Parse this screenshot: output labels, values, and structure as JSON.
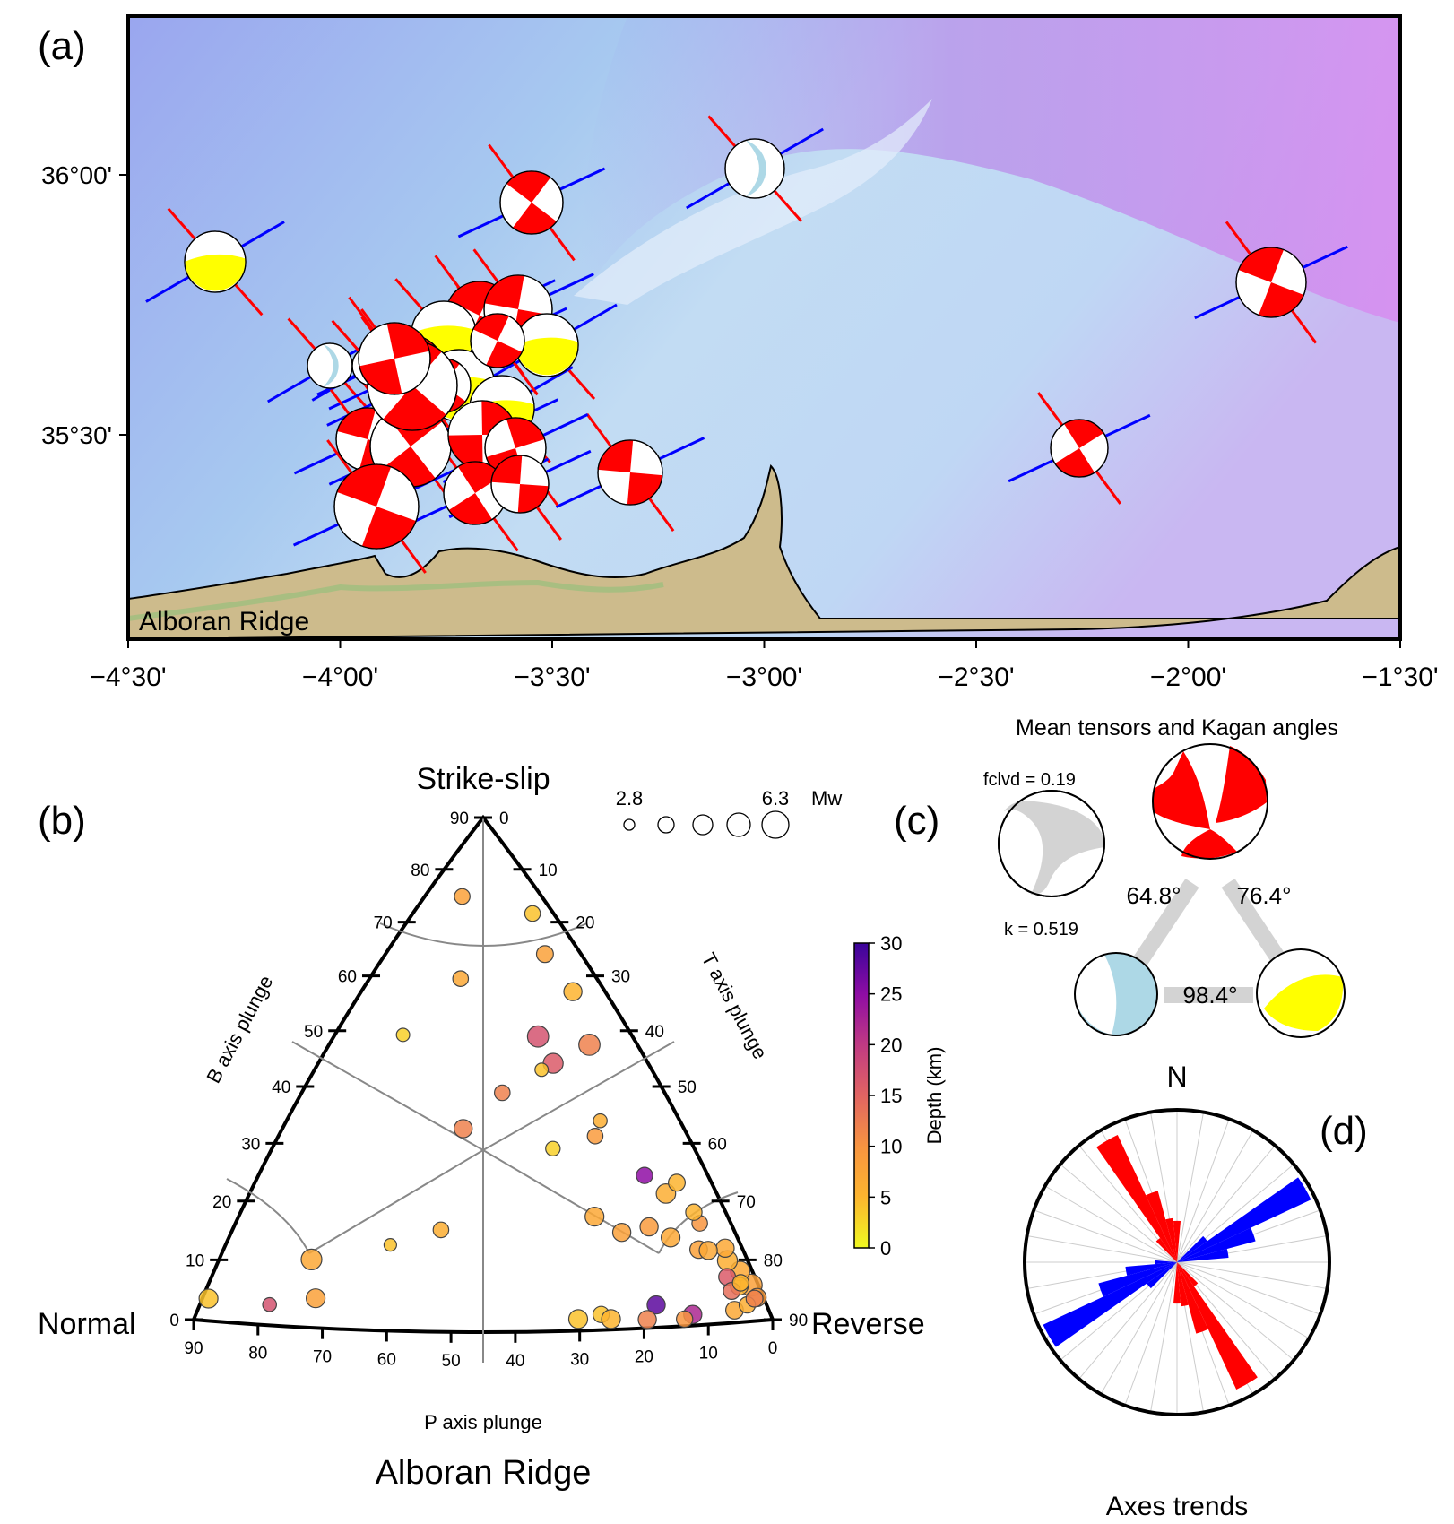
{
  "panels": {
    "a": {
      "label": "(a)",
      "map_label": "Alboran Ridge",
      "lat_ticks": [
        "36°00'",
        "35°30'"
      ],
      "lon_ticks": [
        "−4°30'",
        "−4°00'",
        "−3°30'",
        "−3°00'",
        "−2°30'",
        "−2°00'",
        "−1°30'"
      ]
    },
    "b": {
      "label": "(b)",
      "title": "Alboran Ridge",
      "corner_top": "Strike-slip",
      "corner_left": "Normal",
      "corner_right": "Reverse",
      "axis_left": "B axis plunge",
      "axis_right": "T axis plunge",
      "axis_bottom": "P axis plunge",
      "left_ticks": [
        "90",
        "80",
        "70",
        "60",
        "50",
        "40",
        "30",
        "20",
        "10",
        "0"
      ],
      "right_ticks": [
        "0",
        "10",
        "20",
        "30",
        "40",
        "50",
        "60",
        "70",
        "80",
        "90"
      ],
      "bottom_ticks": [
        "90",
        "80",
        "70",
        "60",
        "50",
        "40",
        "30",
        "20",
        "10",
        "0"
      ],
      "size_legend": {
        "min": "2.8",
        "max": "6.3",
        "unit": "Mw"
      },
      "colorbar": {
        "label": "Depth (km)",
        "ticks": [
          "30",
          "25",
          "20",
          "15",
          "10",
          "5",
          "0"
        ]
      }
    },
    "c": {
      "label": "(c)",
      "title": "Mean tensors and Kagan angles",
      "fclvd": "fclvd = 0.19",
      "k": "k = 0.519",
      "angles": [
        "64.8°",
        "76.4°",
        "98.4°"
      ]
    },
    "d": {
      "label": "(d)",
      "north": "N",
      "title": "Axes trends"
    }
  },
  "colors": {
    "strike_slip": "#ff0000",
    "normal": "#add8e6",
    "reverse": "#ffff00",
    "p_axis": "#0000ff",
    "t_axis": "#ff0000",
    "mean_tensor": "#d3d3d3"
  },
  "chart_data": [
    {
      "type": "scatter",
      "title": "Alboran Ridge",
      "description_axes": [
        "B axis plunge",
        "T axis plunge",
        "P axis plunge"
      ],
      "points": [
        {
          "t": 72,
          "p": 3,
          "b": 15,
          "mw": 4.6,
          "depth": 8
        },
        {
          "t": 70,
          "p": 5,
          "b": 18,
          "mw": 4.2,
          "depth": 7
        },
        {
          "t": 75,
          "p": 4,
          "b": 12,
          "mw": 4.0,
          "depth": 9
        },
        {
          "t": 68,
          "p": 8,
          "b": 20,
          "mw": 4.3,
          "depth": 6
        },
        {
          "t": 73,
          "p": 9,
          "b": 15,
          "mw": 3.9,
          "depth": 5
        },
        {
          "t": 66,
          "p": 6,
          "b": 22,
          "mw": 4.0,
          "depth": 7
        },
        {
          "t": 70,
          "p": 11,
          "b": 17,
          "mw": 3.8,
          "depth": 16
        },
        {
          "t": 62,
          "p": 10,
          "b": 26,
          "mw": 3.6,
          "depth": 10
        },
        {
          "t": 64,
          "p": 14,
          "b": 22,
          "mw": 3.9,
          "depth": 8
        },
        {
          "t": 60,
          "p": 18,
          "b": 24,
          "mw": 4.1,
          "depth": 7
        },
        {
          "t": 56,
          "p": 14,
          "b": 30,
          "mw": 4.2,
          "depth": 6
        },
        {
          "t": 58,
          "p": 10,
          "b": 32,
          "mw": 3.8,
          "depth": 5
        },
        {
          "t": 55,
          "p": 20,
          "b": 25,
          "mw": 4.0,
          "depth": 9
        },
        {
          "t": 52,
          "p": 16,
          "b": 32,
          "mw": 3.7,
          "depth": 25
        },
        {
          "t": 52,
          "p": 24,
          "b": 24,
          "mw": 4.0,
          "depth": 8
        },
        {
          "t": 48,
          "p": 26,
          "b": 26,
          "mw": 4.1,
          "depth": 7
        },
        {
          "t": 44,
          "p": 20,
          "b": 36,
          "mw": 3.6,
          "depth": 9
        },
        {
          "t": 40,
          "p": 26,
          "b": 34,
          "mw": 3.4,
          "depth": 3
        },
        {
          "t": 26,
          "p": 62,
          "b": 12,
          "mw": 4.1,
          "depth": 8
        },
        {
          "t": 22,
          "p": 58,
          "b": 20,
          "mw": 4.4,
          "depth": 7
        },
        {
          "t": 20,
          "p": 68,
          "b": 10,
          "mw": 3.3,
          "depth": 17
        },
        {
          "t": 36,
          "p": 20,
          "b": 44,
          "mw": 4.3,
          "depth": 16
        },
        {
          "t": 32,
          "p": 28,
          "b": 40,
          "mw": 3.6,
          "depth": 12
        },
        {
          "t": 30,
          "p": 34,
          "b": 36,
          "mw": 4.0,
          "depth": 12
        },
        {
          "t": 34,
          "p": 42,
          "b": 24,
          "mw": 3.6,
          "depth": 6
        },
        {
          "t": 30,
          "p": 48,
          "b": 22,
          "mw": 3.1,
          "depth": 4
        },
        {
          "t": 33,
          "p": 20,
          "b": 47,
          "mw": 4.5,
          "depth": 17
        },
        {
          "t": 35,
          "p": 22,
          "b": 43,
          "mw": 3.2,
          "depth": 4
        },
        {
          "t": 44,
          "p": 18,
          "b": 38,
          "mw": 3.3,
          "depth": 6
        },
        {
          "t": 40,
          "p": 12,
          "b": 48,
          "mw": 4.5,
          "depth": 12
        },
        {
          "t": 36,
          "p": 8,
          "b": 56,
          "mw": 4.0,
          "depth": 5
        },
        {
          "t": 30,
          "p": 10,
          "b": 60,
          "mw": 3.8,
          "depth": 8
        },
        {
          "t": 26,
          "p": 6,
          "b": 68,
          "mw": 3.6,
          "depth": 4
        },
        {
          "t": 20,
          "p": 26,
          "b": 54,
          "mw": 3.6,
          "depth": 7
        },
        {
          "t": 12,
          "p": 20,
          "b": 68,
          "mw": 3.6,
          "depth": 8
        },
        {
          "t": 16,
          "p": 36,
          "b": 48,
          "mw": 3.2,
          "depth": 3
        },
        {
          "t": 64,
          "p": 26,
          "b": 10,
          "mw": 4.0,
          "depth": 28
        },
        {
          "t": 66,
          "p": 12,
          "b": 22,
          "mw": 4.0,
          "depth": 7
        },
        {
          "t": 62,
          "p": 10,
          "b": 28,
          "mw": 3.7,
          "depth": 5
        },
        {
          "t": 74,
          "p": 12,
          "b": 14,
          "mw": 3.8,
          "depth": 14
        },
        {
          "t": 76,
          "p": 8,
          "b": 16,
          "mw": 3.7,
          "depth": 5
        },
        {
          "t": 78,
          "p": 14,
          "b": 8,
          "mw": 3.9,
          "depth": 7
        },
        {
          "t": 80,
          "p": 10,
          "b": 10,
          "mw": 3.7,
          "depth": 6
        },
        {
          "t": 82,
          "p": 6,
          "b": 12,
          "mw": 3.8,
          "depth": 12
        },
        {
          "t": 72,
          "p": 22,
          "b": 6,
          "mw": 4.0,
          "depth": 22
        },
        {
          "t": 60,
          "p": 34,
          "b": 6,
          "mw": 3.7,
          "depth": 4
        },
        {
          "t": 74,
          "p": 24,
          "b": 2,
          "mw": 3.7,
          "depth": 10
        },
        {
          "t": 64,
          "p": 34,
          "b": 2,
          "mw": 4.1,
          "depth": 5
        },
        {
          "t": 60,
          "p": 38,
          "b": 2,
          "mw": 4.1,
          "depth": 4
        },
        {
          "t": 72,
          "p": 30,
          "b": 1,
          "mw": 4.0,
          "depth": 12
        },
        {
          "t": 4,
          "p": 82,
          "b": 12,
          "mw": 4.1,
          "depth": 4
        }
      ]
    },
    {
      "type": "rose",
      "title": "Axes trends",
      "bin_width_deg": 10,
      "series": [
        {
          "name": "P axis",
          "color": "#0000ff",
          "bins": [
            {
              "dir": 60,
              "len": 1.0
            },
            {
              "dir": 70,
              "len": 0.55
            },
            {
              "dir": 80,
              "len": 0.35
            },
            {
              "dir": 50,
              "len": 0.25
            },
            {
              "dir": 240,
              "len": 1.0
            },
            {
              "dir": 250,
              "len": 0.55
            },
            {
              "dir": 260,
              "len": 0.35
            },
            {
              "dir": 230,
              "len": 0.25
            },
            {
              "dir": 270,
              "len": 0.15
            }
          ]
        },
        {
          "name": "T axis",
          "color": "#ff0000",
          "bins": [
            {
              "dir": 330,
              "len": 0.95
            },
            {
              "dir": 340,
              "len": 0.5
            },
            {
              "dir": 350,
              "len": 0.3
            },
            {
              "dir": 0,
              "len": 0.28
            },
            {
              "dir": 320,
              "len": 0.2
            },
            {
              "dir": 150,
              "len": 0.95
            },
            {
              "dir": 160,
              "len": 0.5
            },
            {
              "dir": 170,
              "len": 0.3
            },
            {
              "dir": 180,
              "len": 0.28
            },
            {
              "dir": 140,
              "len": 0.2
            }
          ]
        }
      ]
    }
  ]
}
